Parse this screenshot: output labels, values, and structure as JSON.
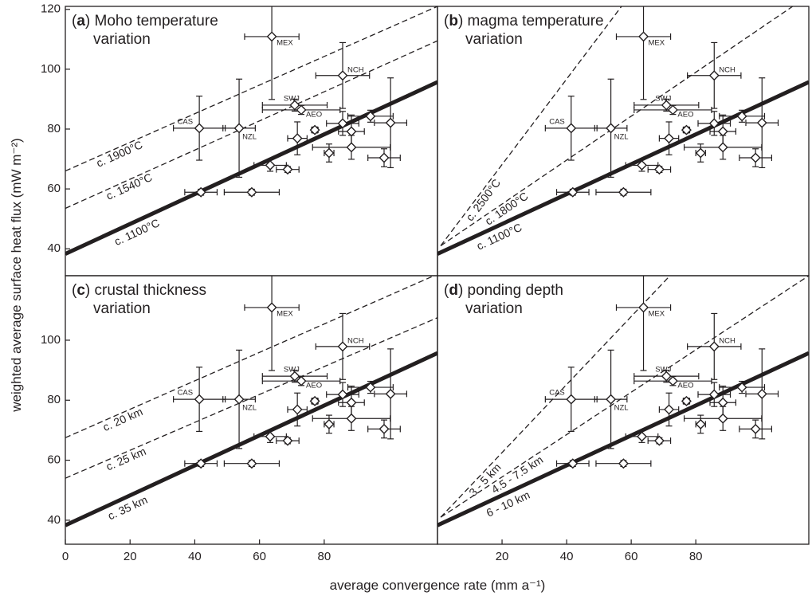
{
  "xlabel": "average convergence rate (mm a⁻¹)",
  "ylabel": "weighted average  surface heat flux (mW m⁻²)",
  "chart_data": [
    {
      "type": "scatter",
      "title_lines": [
        "(a) Moho temperature",
        "variation"
      ],
      "xlim": [
        0,
        115
      ],
      "ylim": [
        31,
        121
      ],
      "yticks": [
        40,
        60,
        80,
        100,
        120
      ],
      "lines": [
        {
          "label": "c. 1900°C",
          "style": "dashed",
          "x": [
            0,
            115
          ],
          "y": [
            66,
            121
          ]
        },
        {
          "label": "c. 1540°C",
          "style": "dashed",
          "x": [
            0,
            115
          ],
          "y": [
            53.5,
            109.5
          ]
        },
        {
          "label": "c. 1100°C",
          "style": "solid",
          "x": [
            0,
            115
          ],
          "y": [
            38.3,
            95.7
          ]
        }
      ],
      "points": {
        "x": [
          63.8,
          85.7,
          70.9,
          72.9,
          41.4,
          53.7,
          41.9,
          57.6,
          63.3,
          68.7,
          71.7,
          77.1,
          81.5,
          85.7,
          88.4,
          88.4,
          94.3,
          98.5,
          100.5
        ],
        "y": [
          110.9,
          97.9,
          88.0,
          86.4,
          80.3,
          80.3,
          58.9,
          58.9,
          67.9,
          66.5,
          76.9,
          79.7,
          72.0,
          81.9,
          79.2,
          73.9,
          84.3,
          70.4,
          82.1
        ],
        "xerr": [
          8.4,
          8.3,
          10,
          12,
          8,
          5,
          5,
          8.5,
          5,
          3.5,
          3,
          1,
          1.5,
          5,
          4,
          12,
          7,
          5,
          5
        ],
        "yerr": [
          21,
          11,
          2,
          1.5,
          10.7,
          16.4,
          1,
          1,
          2,
          1,
          5.5,
          1,
          3,
          4,
          5.5,
          4,
          2,
          3,
          15
        ],
        "labels": [
          "MEX",
          "NCH",
          "SWJ",
          "AEO",
          "CAS",
          "NZL",
          null,
          null,
          null,
          null,
          null,
          null,
          null,
          null,
          null,
          null,
          null,
          null,
          null
        ]
      }
    },
    {
      "type": "scatter",
      "title_lines": [
        "(b) magma temperature",
        "variation"
      ],
      "xlim": [
        0,
        115
      ],
      "ylim": [
        31,
        121
      ],
      "lines": [
        {
          "label": "c. 2500°C",
          "style": "dashed",
          "x": [
            1,
            57
          ],
          "y": [
            41,
            121
          ]
        },
        {
          "label": "c. 1800°C",
          "style": "dashed",
          "x": [
            1,
            110
          ],
          "y": [
            41,
            121
          ]
        },
        {
          "label": "c. 1100°C",
          "style": "solid",
          "x": [
            0,
            115
          ],
          "y": [
            38.3,
            95.7
          ]
        }
      ],
      "points": {
        "x": [
          63.8,
          85.7,
          70.9,
          72.9,
          41.4,
          53.7,
          41.9,
          57.6,
          63.3,
          68.7,
          71.7,
          77.1,
          81.5,
          85.7,
          88.4,
          88.4,
          94.3,
          98.5,
          100.5
        ],
        "y": [
          110.9,
          97.9,
          88.0,
          86.4,
          80.3,
          80.3,
          58.9,
          58.9,
          67.9,
          66.5,
          76.9,
          79.7,
          72.0,
          81.9,
          79.2,
          73.9,
          84.3,
          70.4,
          82.1
        ],
        "xerr": [
          8.4,
          8.3,
          10,
          12,
          8,
          5,
          5,
          8.5,
          5,
          3.5,
          3,
          1,
          1.5,
          5,
          4,
          12,
          7,
          5,
          5
        ],
        "yerr": [
          21,
          11,
          2,
          1.5,
          10.7,
          16.4,
          1,
          1,
          2,
          1,
          5.5,
          1,
          3,
          4,
          5.5,
          4,
          2,
          3,
          15
        ],
        "labels": [
          "MEX",
          "NCH",
          "SWJ",
          "AEO",
          "CAS",
          "NZL",
          null,
          null,
          null,
          null,
          null,
          null,
          null,
          null,
          null,
          null,
          null,
          null,
          null
        ]
      }
    },
    {
      "type": "scatter",
      "title_lines": [
        "(c) crustal thickness",
        "variation"
      ],
      "xlim": [
        0,
        115
      ],
      "ylim": [
        32,
        121.5
      ],
      "yticks": [
        40,
        60,
        80,
        100
      ],
      "xticks": [
        0,
        20,
        40,
        60,
        80
      ],
      "lines": [
        {
          "label": "c. 20 km",
          "style": "dashed",
          "x": [
            0,
            115
          ],
          "y": [
            67.5,
            122
          ]
        },
        {
          "label": "c. 25 km",
          "style": "dashed",
          "x": [
            0,
            115
          ],
          "y": [
            54,
            107.5
          ]
        },
        {
          "label": "c. 35 km",
          "style": "solid",
          "x": [
            0,
            115
          ],
          "y": [
            38.3,
            95.7
          ]
        }
      ],
      "points": {
        "x": [
          63.8,
          85.7,
          70.9,
          72.9,
          41.4,
          53.7,
          41.9,
          57.6,
          63.3,
          68.7,
          71.7,
          77.1,
          81.5,
          85.7,
          88.4,
          88.4,
          94.3,
          98.5,
          100.5
        ],
        "y": [
          110.9,
          97.9,
          88.0,
          86.4,
          80.3,
          80.3,
          58.9,
          58.9,
          67.9,
          66.5,
          76.9,
          79.7,
          72.0,
          81.9,
          79.2,
          73.9,
          84.3,
          70.4,
          82.1
        ],
        "xerr": [
          8.4,
          8.3,
          10,
          12,
          8,
          5,
          5,
          8.5,
          5,
          3.5,
          3,
          1,
          1.5,
          5,
          4,
          12,
          7,
          5,
          5
        ],
        "yerr": [
          21,
          11,
          2,
          1.5,
          10.7,
          16.4,
          1,
          1,
          2,
          1,
          5.5,
          1,
          3,
          4,
          5.5,
          4,
          2,
          3,
          15
        ],
        "labels": [
          "MEX",
          "NCH",
          "SWJ",
          "AEO",
          "CAS",
          "NZL",
          null,
          null,
          null,
          null,
          null,
          null,
          null,
          null,
          null,
          null,
          null,
          null,
          null
        ]
      }
    },
    {
      "type": "scatter",
      "title_lines": [
        "(d) ponding depth",
        "variation"
      ],
      "xlim": [
        0,
        115
      ],
      "ylim": [
        32,
        121.5
      ],
      "xticks": [
        20,
        40,
        60,
        80
      ],
      "lines": [
        {
          "label": "3 - 5 km",
          "style": "dashed",
          "x": [
            1,
            72
          ],
          "y": [
            41,
            121.5
          ]
        },
        {
          "label": "4.5 - 7.5 km",
          "style": "dashed",
          "x": [
            1,
            115
          ],
          "y": [
            41,
            121.5
          ]
        },
        {
          "label": "6 - 10 km",
          "style": "solid",
          "x": [
            0,
            115
          ],
          "y": [
            38.3,
            95.7
          ]
        }
      ],
      "points": {
        "x": [
          63.8,
          85.7,
          70.9,
          72.9,
          41.4,
          53.7,
          41.9,
          57.6,
          63.3,
          68.7,
          71.7,
          77.1,
          81.5,
          85.7,
          88.4,
          88.4,
          94.3,
          98.5,
          100.5
        ],
        "y": [
          110.9,
          97.9,
          88.0,
          86.4,
          80.3,
          80.3,
          58.9,
          58.9,
          67.9,
          66.5,
          76.9,
          79.7,
          72.0,
          81.9,
          79.2,
          73.9,
          84.3,
          70.4,
          82.1
        ],
        "xerr": [
          8.4,
          8.3,
          10,
          12,
          8,
          5,
          5,
          8.5,
          5,
          3.5,
          3,
          1,
          1.5,
          5,
          4,
          12,
          7,
          5,
          5
        ],
        "yerr": [
          21,
          11,
          2,
          1.5,
          10.7,
          16.4,
          1,
          1,
          2,
          1,
          5.5,
          1,
          3,
          4,
          5.5,
          4,
          2,
          3,
          15
        ],
        "labels": [
          "MEX",
          "NCH",
          "SWJ",
          "AEO",
          "CAS",
          "NZL",
          null,
          null,
          null,
          null,
          null,
          null,
          null,
          null,
          null,
          null,
          null,
          null,
          null
        ]
      }
    }
  ]
}
